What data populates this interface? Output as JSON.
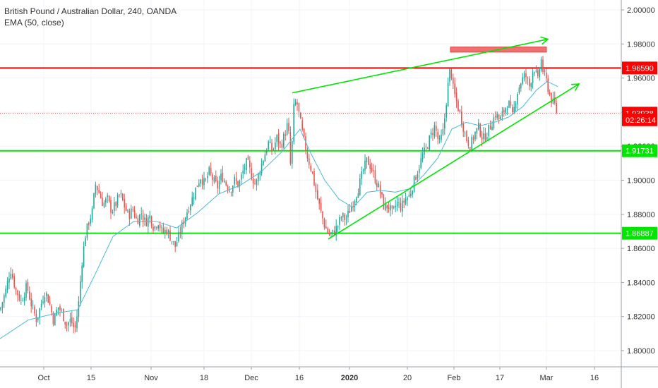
{
  "chart_data": {
    "type": "candlestick",
    "title": "British Pound / Australian Dollar, 240, OANDA",
    "indicator": "EMA (50, close)",
    "yaxis": {
      "ticks": [
        "1.80000",
        "1.82000",
        "1.84000",
        "1.86000",
        "1.88000",
        "1.90000",
        "1.92000",
        "1.94000",
        "1.96000",
        "1.98000",
        "2.00000"
      ],
      "range": [
        1.7925,
        2.004
      ],
      "position": "right"
    },
    "xaxis": {
      "ticks": [
        "Oct",
        "15",
        "Nov",
        "18",
        "Dec",
        "16",
        "2020",
        "20",
        "Feb",
        "17",
        "Mar",
        "16"
      ],
      "bold_ticks": [
        "2020"
      ]
    },
    "price_tags": [
      {
        "label": "1.96590",
        "value": 1.9659,
        "color": "#ff0000"
      },
      {
        "label": "1.93938",
        "value": 1.93938,
        "color": "#ff0000"
      },
      {
        "label": "02:26:14",
        "value": 1.9355,
        "color": "#ff0000"
      },
      {
        "label": "1.91731",
        "value": 1.91731,
        "color": "#00e600"
      },
      {
        "label": "1.86887",
        "value": 1.86887,
        "color": "#00e600"
      }
    ],
    "horizontal_lines": [
      {
        "value": 1.9659,
        "color": "#ff0000"
      },
      {
        "value": 1.91731,
        "color": "#00e600"
      },
      {
        "value": 1.86887,
        "color": "#00e600"
      },
      {
        "value": 1.93938,
        "color": "#ff5555",
        "style": "dotted"
      }
    ],
    "trend_lines": [
      {
        "from": [
          414,
          1.9513
        ],
        "to": [
          776,
          1.9828
        ],
        "color": "#00e600",
        "arrow": true
      },
      {
        "from": [
          465,
          1.8655
        ],
        "to": [
          820,
          1.9565
        ],
        "color": "#00e600",
        "arrow": true
      }
    ],
    "resistance_box": {
      "x_from": 638,
      "x_to": 774,
      "y_from": 1.9752,
      "y_to": 1.9782,
      "color": "#f07070"
    },
    "close_path": [
      [
        0,
        1.824
      ],
      [
        8,
        1.835
      ],
      [
        15,
        1.848
      ],
      [
        22,
        1.836
      ],
      [
        30,
        1.829
      ],
      [
        38,
        1.838
      ],
      [
        45,
        1.826
      ],
      [
        52,
        1.818
      ],
      [
        58,
        1.827
      ],
      [
        64,
        1.835
      ],
      [
        70,
        1.828
      ],
      [
        76,
        1.817
      ],
      [
        82,
        1.826
      ],
      [
        88,
        1.822
      ],
      [
        94,
        1.815
      ],
      [
        100,
        1.818
      ],
      [
        106,
        1.812
      ],
      [
        111,
        1.826
      ],
      [
        116,
        1.852
      ],
      [
        121,
        1.868
      ],
      [
        126,
        1.876
      ],
      [
        131,
        1.882
      ],
      [
        135,
        1.898
      ],
      [
        140,
        1.893
      ],
      [
        146,
        1.886
      ],
      [
        152,
        1.889
      ],
      [
        158,
        1.882
      ],
      [
        164,
        1.886
      ],
      [
        170,
        1.892
      ],
      [
        176,
        1.885
      ],
      [
        182,
        1.879
      ],
      [
        188,
        1.883
      ],
      [
        194,
        1.876
      ],
      [
        200,
        1.881
      ],
      [
        206,
        1.875
      ],
      [
        212,
        1.879
      ],
      [
        218,
        1.872
      ],
      [
        224,
        1.876
      ],
      [
        230,
        1.869
      ],
      [
        236,
        1.871
      ],
      [
        242,
        1.866
      ],
      [
        248,
        1.861
      ],
      [
        254,
        1.868
      ],
      [
        260,
        1.876
      ],
      [
        266,
        1.883
      ],
      [
        272,
        1.889
      ],
      [
        278,
        1.896
      ],
      [
        284,
        1.902
      ],
      [
        290,
        1.898
      ],
      [
        296,
        1.905
      ],
      [
        302,
        1.9
      ],
      [
        308,
        1.896
      ],
      [
        314,
        1.903
      ],
      [
        320,
        1.898
      ],
      [
        326,
        1.894
      ],
      [
        332,
        1.9
      ],
      [
        338,
        1.897
      ],
      [
        344,
        1.905
      ],
      [
        350,
        1.911
      ],
      [
        356,
        1.903
      ],
      [
        362,
        1.897
      ],
      [
        368,
        1.906
      ],
      [
        374,
        1.914
      ],
      [
        380,
        1.922
      ],
      [
        386,
        1.917
      ],
      [
        392,
        1.925
      ],
      [
        398,
        1.92
      ],
      [
        404,
        1.928
      ],
      [
        408,
        1.934
      ],
      [
        412,
        1.905
      ],
      [
        416,
        1.942
      ],
      [
        420,
        1.947
      ],
      [
        425,
        1.935
      ],
      [
        430,
        1.924
      ],
      [
        436,
        1.913
      ],
      [
        442,
        1.905
      ],
      [
        448,
        1.892
      ],
      [
        454,
        1.882
      ],
      [
        460,
        1.873
      ],
      [
        466,
        1.868
      ],
      [
        472,
        1.869
      ],
      [
        478,
        1.873
      ],
      [
        484,
        1.879
      ],
      [
        490,
        1.877
      ],
      [
        496,
        1.883
      ],
      [
        502,
        1.889
      ],
      [
        508,
        1.896
      ],
      [
        514,
        1.905
      ],
      [
        520,
        1.912
      ],
      [
        526,
        1.907
      ],
      [
        532,
        1.9
      ],
      [
        538,
        1.894
      ],
      [
        544,
        1.884
      ],
      [
        550,
        1.885
      ],
      [
        556,
        1.88
      ],
      [
        562,
        1.887
      ],
      [
        568,
        1.884
      ],
      [
        574,
        1.889
      ],
      [
        580,
        1.891
      ],
      [
        586,
        1.899
      ],
      [
        592,
        1.906
      ],
      [
        598,
        1.914
      ],
      [
        604,
        1.919
      ],
      [
        610,
        1.926
      ],
      [
        616,
        1.932
      ],
      [
        622,
        1.921
      ],
      [
        628,
        1.929
      ],
      [
        634,
        1.954
      ],
      [
        638,
        1.967
      ],
      [
        642,
        1.953
      ],
      [
        648,
        1.944
      ],
      [
        654,
        1.935
      ],
      [
        660,
        1.925
      ],
      [
        666,
        1.92
      ],
      [
        672,
        1.927
      ],
      [
        678,
        1.931
      ],
      [
        684,
        1.924
      ],
      [
        690,
        1.928
      ],
      [
        696,
        1.933
      ],
      [
        702,
        1.939
      ],
      [
        708,
        1.935
      ],
      [
        714,
        1.941
      ],
      [
        720,
        1.946
      ],
      [
        726,
        1.937
      ],
      [
        732,
        1.951
      ],
      [
        738,
        1.958
      ],
      [
        744,
        1.962
      ],
      [
        750,
        1.955
      ],
      [
        756,
        1.967
      ],
      [
        762,
        1.958
      ],
      [
        766,
        1.972
      ],
      [
        770,
        1.962
      ],
      [
        774,
        1.958
      ],
      [
        778,
        1.951
      ],
      [
        782,
        1.946
      ],
      [
        786,
        1.944
      ],
      [
        789,
        1.939
      ]
    ],
    "ema_path": [
      [
        0,
        1.807
      ],
      [
        40,
        1.818
      ],
      [
        80,
        1.822
      ],
      [
        110,
        1.824
      ],
      [
        135,
        1.845
      ],
      [
        160,
        1.867
      ],
      [
        190,
        1.876
      ],
      [
        220,
        1.876
      ],
      [
        250,
        1.872
      ],
      [
        280,
        1.881
      ],
      [
        310,
        1.892
      ],
      [
        340,
        1.897
      ],
      [
        370,
        1.905
      ],
      [
        400,
        1.917
      ],
      [
        425,
        1.93
      ],
      [
        440,
        1.916
      ],
      [
        460,
        1.9
      ],
      [
        480,
        1.889
      ],
      [
        500,
        1.884
      ],
      [
        520,
        1.893
      ],
      [
        540,
        1.894
      ],
      [
        560,
        1.893
      ],
      [
        580,
        1.895
      ],
      [
        600,
        1.903
      ],
      [
        620,
        1.913
      ],
      [
        640,
        1.93
      ],
      [
        660,
        1.934
      ],
      [
        680,
        1.932
      ],
      [
        700,
        1.934
      ],
      [
        720,
        1.937
      ],
      [
        740,
        1.943
      ],
      [
        760,
        1.953
      ],
      [
        775,
        1.958
      ],
      [
        790,
        1.955
      ]
    ],
    "colors": {
      "up": "#26a69a",
      "down": "#ef5350",
      "ema": "#4bb9d6",
      "grid": "#f0f3fa"
    }
  }
}
